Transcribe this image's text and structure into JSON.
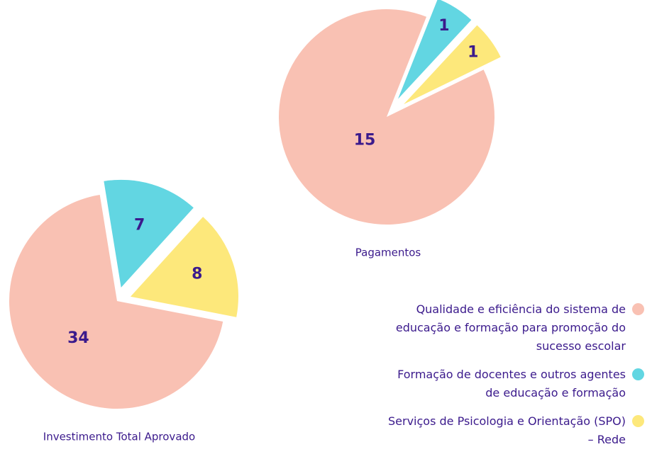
{
  "chart_data": [
    {
      "type": "pie",
      "title": "Investimento Total Aprovado",
      "values": [
        34,
        7,
        8
      ],
      "colors": [
        "#f9c1b3",
        "#62d6e2",
        "#fde87b"
      ]
    },
    {
      "type": "pie",
      "title": "Pagamentos",
      "values": [
        15,
        1,
        1
      ],
      "colors": [
        "#f9c1b3",
        "#62d6e2",
        "#fde87b"
      ]
    }
  ],
  "legend": {
    "labels": [
      "Qualidade e eficiência do sistema de educação e formação para promoção do sucesso escolar",
      "Formação de docentes e outros agentes de educação e formação",
      "Serviços de Psicologia e Orientação (SPO) – Rede"
    ],
    "colors": [
      "#f9c1b3",
      "#62d6e2",
      "#fde87b"
    ]
  }
}
